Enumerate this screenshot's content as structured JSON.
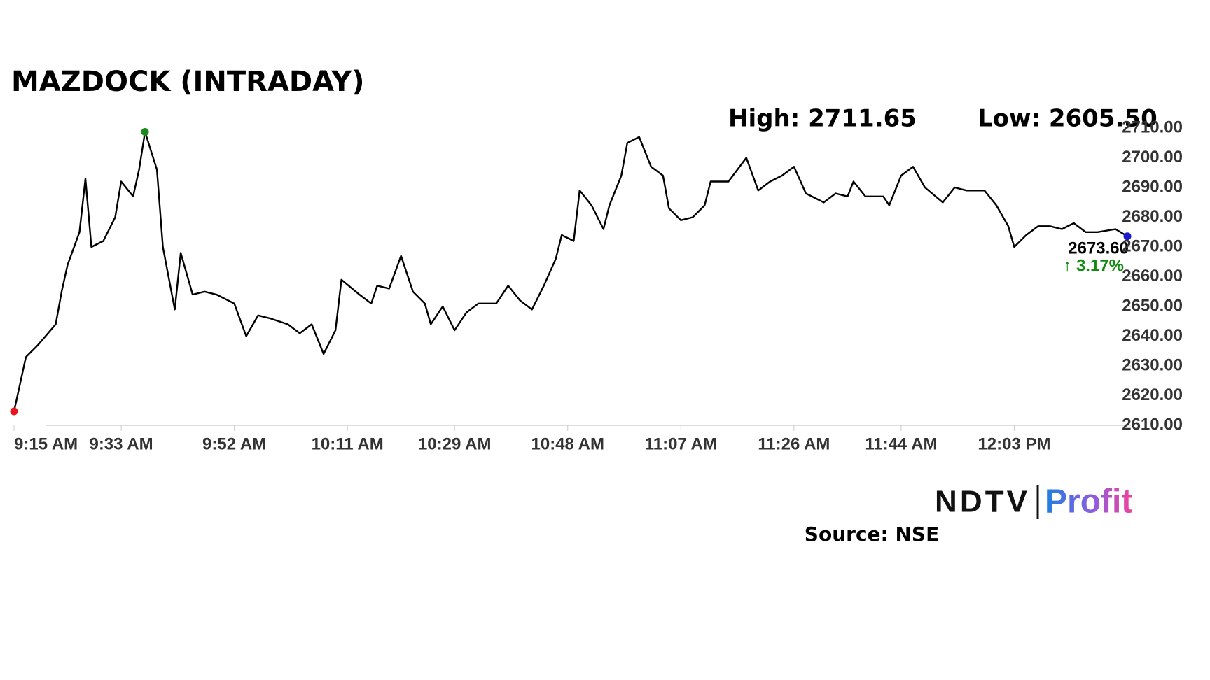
{
  "chart_data": {
    "type": "line",
    "title": "MAZDOCK (INTRADAY)",
    "annotations": {
      "high": "High: 2711.65",
      "low": "Low: 2605.50",
      "last_price": "2673.60",
      "change": "↑ 3.17%"
    },
    "source": "Source: NSE",
    "logo": {
      "brand": "NDTV",
      "product": "Profit"
    },
    "x": [
      "9:15 AM",
      "9:17 AM",
      "9:19 AM",
      "9:22 AM",
      "9:23 AM",
      "9:24 AM",
      "9:26 AM",
      "9:27 AM",
      "9:28 AM",
      "9:30 AM",
      "9:32 AM",
      "9:33 AM",
      "9:35 AM",
      "9:36 AM",
      "9:37 AM",
      "9:39 AM",
      "9:40 AM",
      "9:42 AM",
      "9:43 AM",
      "9:45 AM",
      "9:47 AM",
      "9:49 AM",
      "9:52 AM",
      "9:54 AM",
      "9:56 AM",
      "9:58 AM",
      "10:01 AM",
      "10:03 AM",
      "10:05 AM",
      "10:07 AM",
      "10:09 AM",
      "10:10 AM",
      "10:13 AM",
      "10:15 AM",
      "10:16 AM",
      "10:18 AM",
      "10:20 AM",
      "10:22 AM",
      "10:24 AM",
      "10:25 AM",
      "10:27 AM",
      "10:29 AM",
      "10:31 AM",
      "10:33 AM",
      "10:36 AM",
      "10:38 AM",
      "10:40 AM",
      "10:42 AM",
      "10:44 AM",
      "10:46 AM",
      "10:47 AM",
      "10:49 AM",
      "10:50 AM",
      "10:52 AM",
      "10:54 AM",
      "10:55 AM",
      "10:57 AM",
      "10:58 AM",
      "11:00 AM",
      "11:02 AM",
      "11:04 AM",
      "11:05 AM",
      "11:07 AM",
      "11:09 AM",
      "11:11 AM",
      "11:12 AM",
      "11:15 AM",
      "11:18 AM",
      "11:20 AM",
      "11:22 AM",
      "11:24 AM",
      "11:26 AM",
      "11:28 AM",
      "11:31 AM",
      "11:33 AM",
      "11:35 AM",
      "11:36 AM",
      "11:38 AM",
      "11:41 AM",
      "11:42 AM",
      "11:44 AM",
      "11:46 AM",
      "11:48 AM",
      "11:51 AM",
      "11:53 AM",
      "11:55 AM",
      "11:58 AM",
      "12:00 PM",
      "12:02 PM",
      "12:03 PM",
      "12:05 PM",
      "12:07 PM",
      "12:09 PM",
      "12:11 PM",
      "12:13 PM",
      "12:15 PM",
      "12:17 PM",
      "12:20 PM",
      "12:22 PM"
    ],
    "series": [
      {
        "name": "MAZDOCK",
        "color": "#000000",
        "values": [
          2614.7,
          2633,
          2637,
          2644,
          2655,
          2664,
          2675,
          2693,
          2670,
          2672,
          2680,
          2692,
          2687,
          2696,
          2708.7,
          2696,
          2670,
          2649,
          2668,
          2654,
          2655,
          2654,
          2651,
          2640,
          2647,
          2646,
          2644,
          2641,
          2644,
          2634,
          2642,
          2659,
          2654,
          2651,
          2657,
          2656,
          2667,
          2655,
          2651,
          2644,
          2650,
          2642,
          2648,
          2651,
          2651,
          2657,
          2652,
          2649,
          2657,
          2666,
          2674,
          2672,
          2689,
          2684,
          2676,
          2684,
          2694,
          2705,
          2707,
          2697,
          2694,
          2683,
          2679,
          2680,
          2684,
          2692,
          2692,
          2700,
          2689,
          2692,
          2694,
          2697,
          2688,
          2685,
          2688,
          2687,
          2692,
          2687,
          2687,
          2684,
          2694,
          2697,
          2690,
          2685,
          2690,
          2689,
          2689,
          2684,
          2677,
          2670,
          2674,
          2677,
          2677,
          2676,
          2678,
          2675,
          2675,
          2676,
          2673.6
        ]
      }
    ],
    "xlim": [
      "9:15 AM",
      "12:22 PM"
    ],
    "xticks": [
      "9:15 AM",
      "9:33 AM",
      "9:52 AM",
      "10:11 AM",
      "10:29 AM",
      "10:48 AM",
      "11:07 AM",
      "11:26 AM",
      "11:44 AM",
      "12:03 PM"
    ],
    "ylim": [
      2610,
      2710
    ],
    "yticks": [
      {
        "value": 2610,
        "label": "2610.00"
      },
      {
        "value": 2620,
        "label": "2620.00"
      },
      {
        "value": 2630,
        "label": "2630.00"
      },
      {
        "value": 2640,
        "label": "2640.00"
      },
      {
        "value": 2650,
        "label": "2650.00"
      },
      {
        "value": 2660,
        "label": "2660.00"
      },
      {
        "value": 2670,
        "label": "2670.00"
      },
      {
        "value": 2680,
        "label": "2680.00"
      },
      {
        "value": 2690,
        "label": "2690.00"
      },
      {
        "value": 2700,
        "label": "2700.00"
      },
      {
        "value": 2710,
        "label": "2710.00"
      }
    ],
    "start_marker_color": "#e8141b",
    "high_marker_color": "#1a8a1a",
    "end_marker_color": "#1a1acc",
    "change_color": "#138a13"
  }
}
